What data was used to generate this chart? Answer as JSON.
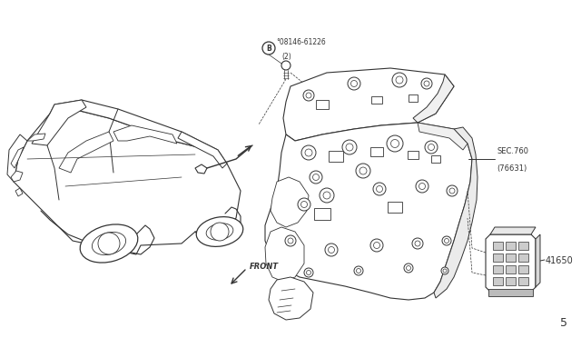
{
  "bg_color": "#ffffff",
  "line_color": "#333333",
  "fig_width": 6.4,
  "fig_height": 3.72,
  "dpi": 100,
  "page_number": "5",
  "label_08146_line1": "°08146-61226",
  "label_08146_line2": "(2)",
  "label_sec760_line1": "SEC.760",
  "label_sec760_line2": "(76631)",
  "label_41650": "41650",
  "label_front": "FRONT"
}
